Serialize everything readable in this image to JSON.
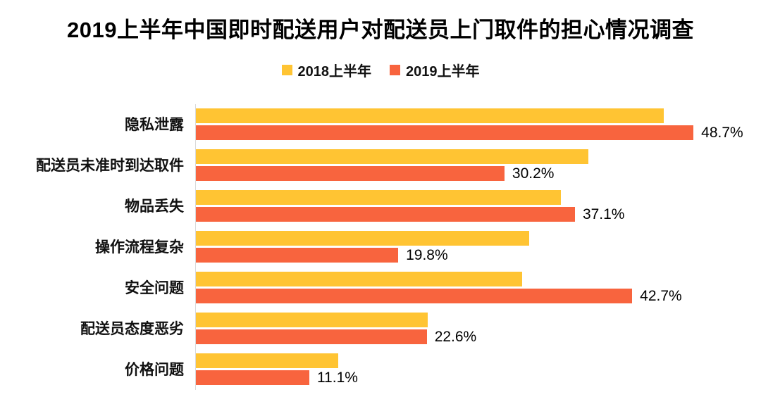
{
  "title": "2019上半年中国即时配送用户对配送员上门取件的担心情况调查",
  "legend": [
    {
      "label": "2018上半年",
      "color": "#FFC433"
    },
    {
      "label": "2019上半年",
      "color": "#F8643E"
    }
  ],
  "chart_data": {
    "type": "bar",
    "orientation": "horizontal",
    "title": "2019上半年中国即时配送用户对配送员上门取件的担心情况调查",
    "categories": [
      "隐私泄露",
      "配送员未准时到达取件",
      "物品丢失",
      "操作流程复杂",
      "安全问题",
      "配送员态度恶劣",
      "价格问题"
    ],
    "series": [
      {
        "name": "2018上半年",
        "color": "#FFC433",
        "values": [
          45.8,
          38.4,
          35.7,
          32.6,
          31.9,
          22.7,
          13.9
        ]
      },
      {
        "name": "2019上半年",
        "color": "#F8643E",
        "values": [
          48.7,
          30.2,
          37.1,
          19.8,
          42.7,
          22.6,
          11.1
        ]
      }
    ],
    "data_labels": {
      "series": "2019上半年",
      "labels": [
        "48.7%",
        "30.2%",
        "37.1%",
        "19.8%",
        "42.7%",
        "22.6%",
        "11.1%"
      ]
    },
    "xlim": [
      0,
      52
    ],
    "xlabel": "",
    "ylabel": "",
    "grid": false,
    "legend_position": "top"
  }
}
